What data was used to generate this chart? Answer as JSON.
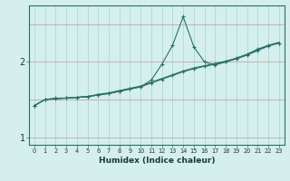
{
  "xlabel": "Humidex (Indice chaleur)",
  "ylabel": "",
  "bg_color": "#d5efec",
  "grid_color_v": "#9ed8d3",
  "grid_color_h": "#c8a0a0",
  "line_color": "#2a7068",
  "xlim": [
    -0.5,
    23.5
  ],
  "ylim": [
    0.9,
    2.75
  ],
  "x": [
    0,
    1,
    2,
    3,
    4,
    5,
    6,
    7,
    8,
    9,
    10,
    11,
    12,
    13,
    14,
    15,
    16,
    17,
    18,
    19,
    20,
    21,
    22,
    23
  ],
  "y_spike": [
    1.42,
    1.5,
    1.52,
    1.52,
    1.53,
    1.54,
    1.56,
    1.58,
    1.61,
    1.64,
    1.67,
    1.76,
    1.97,
    2.22,
    2.6,
    2.2,
    2.0,
    1.96,
    2.0,
    2.05,
    2.1,
    2.17,
    2.22,
    2.25
  ],
  "y_linear1": [
    1.42,
    1.5,
    1.51,
    1.52,
    1.53,
    1.54,
    1.56,
    1.58,
    1.61,
    1.64,
    1.67,
    1.72,
    1.77,
    1.82,
    1.87,
    1.91,
    1.94,
    1.97,
    2.0,
    2.04,
    2.09,
    2.15,
    2.21,
    2.25
  ],
  "y_linear2": [
    1.42,
    1.5,
    1.51,
    1.52,
    1.53,
    1.54,
    1.57,
    1.59,
    1.62,
    1.65,
    1.68,
    1.73,
    1.78,
    1.83,
    1.88,
    1.92,
    1.95,
    1.98,
    2.01,
    2.05,
    2.1,
    2.16,
    2.22,
    2.26
  ],
  "yticks": [
    1,
    2
  ],
  "xticks": [
    0,
    1,
    2,
    3,
    4,
    5,
    6,
    7,
    8,
    9,
    10,
    11,
    12,
    13,
    14,
    15,
    16,
    17,
    18,
    19,
    20,
    21,
    22,
    23
  ],
  "hgrid_lines": [
    1.0,
    1.5,
    2.0,
    2.5
  ]
}
